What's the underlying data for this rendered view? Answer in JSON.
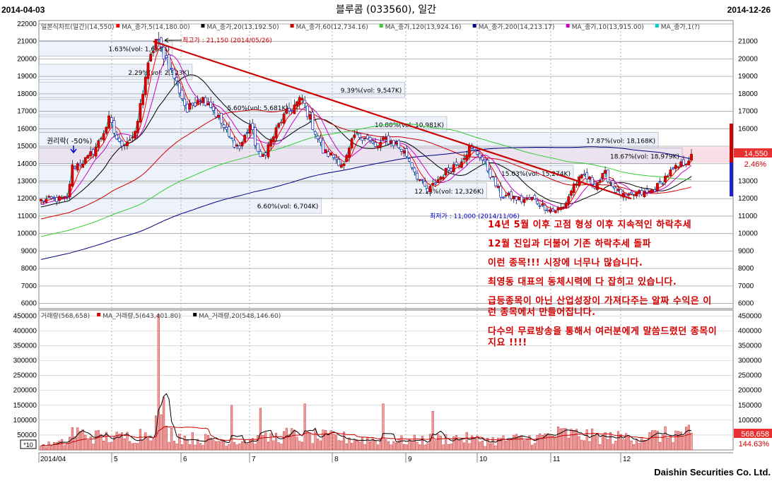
{
  "header": {
    "start_date": "2014-04-03",
    "title": "블루콤 (033560), 일간",
    "end_date": "2014-12-26"
  },
  "price_legend": [
    {
      "text": "일본식차트(일간)(14,550)",
      "color": "#000000"
    },
    {
      "text": "MA_종가,5(14,180.00)",
      "color": "#ff0000"
    },
    {
      "text": "MA_종가,20(13,192.50)",
      "color": "#000000"
    },
    {
      "text": "MA_종가,60(12,734.16)",
      "color": "#cc0000"
    },
    {
      "text": "MA_종가,120(13,924.16)",
      "color": "#33cc33"
    },
    {
      "text": "MA_종가,200(14,213.17)",
      "color": "#000080"
    },
    {
      "text": "MA_종가,10(13,915.00)",
      "color": "#cc00cc"
    },
    {
      "text": "MA_종가,1(?)",
      "color": "#00cccc"
    }
  ],
  "volume_legend": [
    {
      "text": "거래량(568,658)",
      "color": "#000000"
    },
    {
      "text": "MA_거래량,5(643,401.80)",
      "color": "#cc0000"
    },
    {
      "text": "MA_거래량,20(548,146.60)",
      "color": "#000000"
    }
  ],
  "price_annotations": {
    "high": "최고가 : 21,150 (2014/05/26)",
    "low": "최저가 : 11,000 (2014/11/06)",
    "rights": "권리락( -50%)"
  },
  "vol_profile": [
    {
      "label": "1.63%(vol: 1,658K)",
      "price": 20600
    },
    {
      "label": "2.29%(vol: 2,323K)",
      "price": 19250
    },
    {
      "label": "5.60%(vol: 5,681K)",
      "price": 17230
    },
    {
      "label": "9.39%(vol: 9,547K)",
      "price": 18230
    },
    {
      "label": "10.80%(vol: 10,981K)",
      "price": 16250
    },
    {
      "label": "17.87%(vol: 18,168K)",
      "price": 15350
    },
    {
      "label": "18.67%(vol: 18,979K)",
      "price": 14460
    },
    {
      "label": "15.03%(vol: 15,274K)",
      "price": 13460
    },
    {
      "label": "12.13%(vol: 12,326K)",
      "price": 12460
    },
    {
      "label": "6.60%(vol: 6,704K)",
      "price": 11600
    }
  ],
  "current_price": {
    "price": "14,550",
    "change": "2.46%"
  },
  "volume_current": {
    "volume": "568,658",
    "ratio": "144.63%"
  },
  "volume_axis_extra": "*10",
  "footer": {
    "brand": "Daishin Securities Co. Ltd."
  },
  "annotations": [
    "14년 5월 이후 고점 형성 이후 지속적인 하락추세",
    "12월 진입과 더불어 기존 하락추세 돌파",
    "이런 종목!!! 시장에 너무나 많습니다.",
    "최영동 대표의 동체시력에 다 잡히고 있습니다.",
    "급등종목이 아닌 산업성장이 가져다주는 알짜 수익은 이런 종목에서 만들어집니다.",
    "다수의 무료방송을 통해서 여러분에게 말씀드렸던 종목이지요 !!!!"
  ],
  "chart_data": [
    {
      "type": "candlestick",
      "title": "블루콤 (033560), 일간",
      "x_labels": [
        "2014/04",
        "5",
        "6",
        "7",
        "8",
        "9",
        "10",
        "11",
        "12"
      ],
      "y_ticks": [
        6000,
        7000,
        8000,
        9000,
        10000,
        11000,
        12000,
        13000,
        14000,
        15000,
        16000,
        17000,
        18000,
        19000,
        20000,
        21000,
        22000
      ],
      "ylim": [
        5700,
        22200
      ],
      "close_anchors": [
        [
          0,
          11900
        ],
        [
          10,
          12000
        ],
        [
          12,
          13800
        ],
        [
          18,
          14300
        ],
        [
          22,
          15200
        ],
        [
          26,
          16500
        ],
        [
          30,
          15100
        ],
        [
          36,
          15600
        ],
        [
          40,
          19000
        ],
        [
          44,
          21100
        ],
        [
          48,
          20000
        ],
        [
          52,
          18600
        ],
        [
          56,
          17000
        ],
        [
          60,
          17800
        ],
        [
          64,
          17600
        ],
        [
          68,
          16600
        ],
        [
          72,
          15500
        ],
        [
          76,
          14900
        ],
        [
          80,
          16200
        ],
        [
          84,
          14200
        ],
        [
          88,
          15300
        ],
        [
          92,
          16500
        ],
        [
          96,
          17200
        ],
        [
          100,
          17700
        ],
        [
          104,
          16200
        ],
        [
          108,
          14700
        ],
        [
          112,
          14400
        ],
        [
          116,
          13900
        ],
        [
          120,
          15600
        ],
        [
          124,
          15600
        ],
        [
          128,
          14900
        ],
        [
          132,
          15400
        ],
        [
          136,
          15100
        ],
        [
          140,
          14500
        ],
        [
          144,
          13300
        ],
        [
          148,
          12400
        ],
        [
          152,
          13100
        ],
        [
          156,
          13700
        ],
        [
          160,
          14100
        ],
        [
          164,
          14900
        ],
        [
          168,
          14500
        ],
        [
          172,
          13400
        ],
        [
          176,
          12200
        ],
        [
          180,
          12100
        ],
        [
          184,
          11900
        ],
        [
          188,
          12000
        ],
        [
          192,
          11600
        ],
        [
          196,
          11300
        ],
        [
          200,
          11500
        ],
        [
          204,
          12800
        ],
        [
          208,
          13300
        ],
        [
          212,
          12800
        ],
        [
          216,
          13400
        ],
        [
          220,
          12500
        ],
        [
          224,
          12000
        ],
        [
          228,
          12300
        ],
        [
          232,
          12300
        ],
        [
          236,
          12700
        ],
        [
          240,
          13400
        ],
        [
          244,
          13800
        ],
        [
          248,
          14300
        ],
        [
          249,
          14550
        ]
      ],
      "moving_averages": [
        {
          "name": "MA_종가,5",
          "period": 5,
          "color": "#ff0000"
        },
        {
          "name": "MA_종가,20",
          "period": 20,
          "color": "#000000"
        },
        {
          "name": "MA_종가,60",
          "period": 60,
          "color": "#cc0000"
        },
        {
          "name": "MA_종가,120",
          "period": 120,
          "color": "#33cc33"
        },
        {
          "name": "MA_종가,200",
          "period": 200,
          "color": "#000080"
        },
        {
          "name": "MA_종가,10",
          "period": 10,
          "color": "#cc00cc"
        },
        {
          "name": "MA_종가,1",
          "period": 1,
          "color": "#00cccc"
        }
      ],
      "trendlines": [
        {
          "from": [
            43,
            21000
          ],
          "to": [
            226,
            12000
          ],
          "color": "#cc0000"
        }
      ],
      "highlight_band": [
        14050,
        14950
      ]
    },
    {
      "type": "bar",
      "title": "거래량",
      "y_ticks": [
        0,
        50000,
        100000,
        150000,
        200000,
        250000,
        300000,
        350000,
        400000,
        450000
      ],
      "ylim": [
        0,
        470000
      ],
      "volume_anchors": [
        [
          0,
          15000
        ],
        [
          10,
          25000
        ],
        [
          12,
          60000
        ],
        [
          20,
          45000
        ],
        [
          30,
          40000
        ],
        [
          40,
          55000
        ],
        [
          44,
          90000
        ],
        [
          45,
          455000
        ],
        [
          46,
          180000
        ],
        [
          48,
          60000
        ],
        [
          55,
          40000
        ],
        [
          70,
          30000
        ],
        [
          85,
          35000
        ],
        [
          95,
          50000
        ],
        [
          100,
          45000
        ],
        [
          115,
          40000
        ],
        [
          125,
          35000
        ],
        [
          140,
          30000
        ],
        [
          150,
          35000
        ],
        [
          160,
          40000
        ],
        [
          170,
          30000
        ],
        [
          180,
          35000
        ],
        [
          190,
          40000
        ],
        [
          200,
          55000
        ],
        [
          210,
          45000
        ],
        [
          220,
          40000
        ],
        [
          230,
          45000
        ],
        [
          240,
          50000
        ],
        [
          249,
          56866
        ]
      ],
      "spikes": [
        [
          45,
          455000
        ],
        [
          73,
          150000
        ],
        [
          84,
          140000
        ],
        [
          101,
          155000
        ],
        [
          131,
          155000
        ],
        [
          150,
          130000
        ]
      ]
    }
  ]
}
